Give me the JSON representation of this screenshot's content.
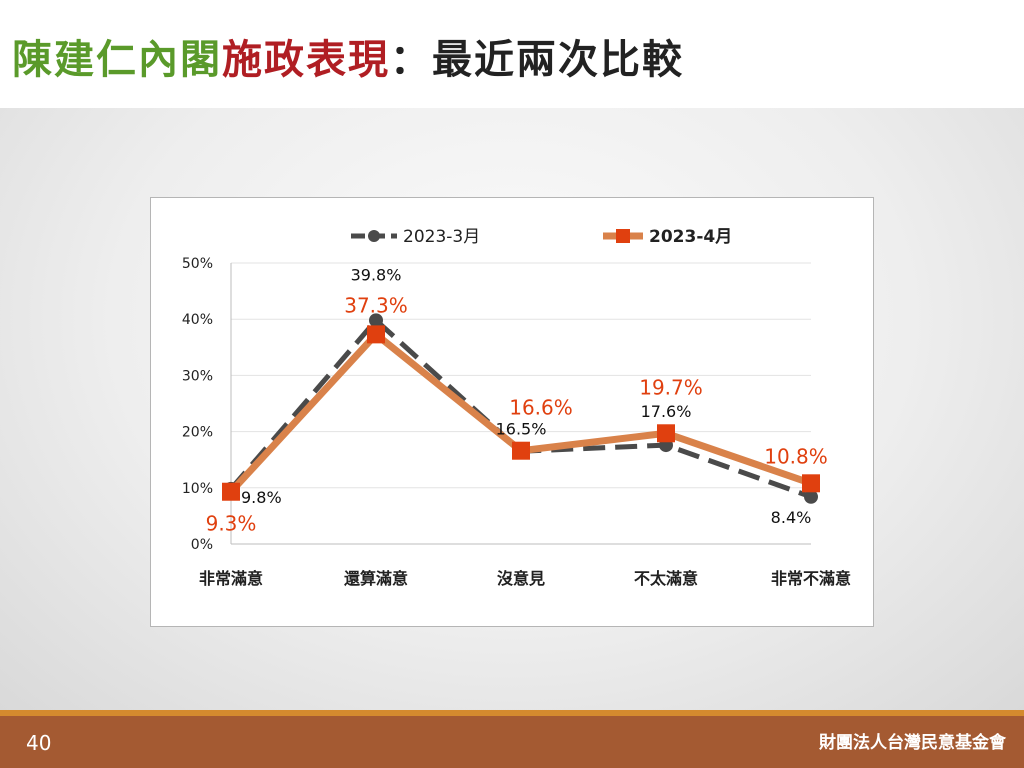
{
  "slide": {
    "title_part1": "陳建仁內閣",
    "title_part2": "施政表現",
    "title_part3": "：最近兩次比較",
    "page_number": "40",
    "organization": "財團法人台灣民意基金會"
  },
  "colors": {
    "title_green": "#5a9a2a",
    "title_red": "#b01e23",
    "series_march": "#4a4a4a",
    "series_april_line": "#d9824a",
    "series_april_marker": "#e0400f",
    "footer": "#a45a32"
  },
  "chart_data": {
    "type": "line",
    "categories": [
      "非常滿意",
      "還算滿意",
      "沒意見",
      "不太滿意",
      "非常不滿意"
    ],
    "yticks": [
      "0%",
      "10%",
      "20%",
      "30%",
      "40%",
      "50%"
    ],
    "ylim": [
      0,
      50
    ],
    "grid": true,
    "legend_position": "top",
    "series": [
      {
        "name": "2023-3月",
        "values": [
          9.8,
          39.8,
          16.5,
          17.6,
          8.4
        ],
        "labels": [
          "9.8%",
          "39.8%",
          "16.5%",
          "17.6%",
          "8.4%"
        ],
        "style": "dashed-circle"
      },
      {
        "name": "2023-4月",
        "values": [
          9.3,
          37.3,
          16.6,
          19.7,
          10.8
        ],
        "labels": [
          "9.3%",
          "37.3%",
          "16.6%",
          "19.7%",
          "10.8%"
        ],
        "style": "solid-square"
      }
    ]
  }
}
